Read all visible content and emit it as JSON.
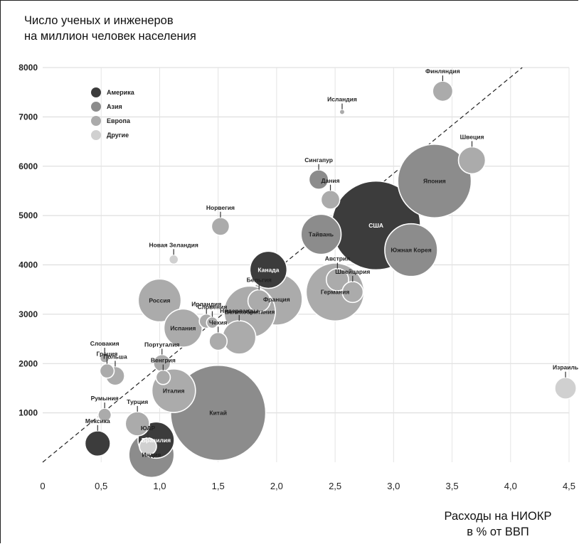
{
  "chart_data": {
    "type": "scatter",
    "bubble": true,
    "ylabel_lines": [
      "Число ученых и инженеров",
      "на миллион человек населения"
    ],
    "xlabel_lines": [
      "Расходы на НИОКР",
      "в % от ВВП"
    ],
    "xlim": [
      0,
      4.5
    ],
    "ylim": [
      0,
      8000
    ],
    "x_ticks": [
      {
        "v": 0,
        "t": "0"
      },
      {
        "v": 0.5,
        "t": "0,5"
      },
      {
        "v": 1.0,
        "t": "1,0"
      },
      {
        "v": 1.5,
        "t": "1,5"
      },
      {
        "v": 2.0,
        "t": "2,0"
      },
      {
        "v": 2.5,
        "t": "2,5"
      },
      {
        "v": 3.0,
        "t": "3,0"
      },
      {
        "v": 3.5,
        "t": "3,5"
      },
      {
        "v": 4.0,
        "t": "4,0"
      },
      {
        "v": 4.5,
        "t": "4,5"
      }
    ],
    "y_ticks": [
      1000,
      2000,
      3000,
      4000,
      5000,
      6000,
      7000,
      8000
    ],
    "grid": true,
    "legend_position": "top-left",
    "series": [
      {
        "name": "Америка",
        "color": "#3c3c3c"
      },
      {
        "name": "Азия",
        "color": "#8c8c8c"
      },
      {
        "name": "Европа",
        "color": "#ababab"
      },
      {
        "name": "Другие",
        "color": "#d0d0d0"
      }
    ],
    "trend_line": {
      "from": [
        0,
        0
      ],
      "to": [
        4.1,
        8000
      ]
    },
    "points": [
      {
        "label": "США",
        "x": 2.85,
        "y": 4800,
        "size": 2.7,
        "series": "Америка"
      },
      {
        "label": "Китай",
        "x": 1.5,
        "y": 1000,
        "size": 3.1,
        "series": "Азия"
      },
      {
        "label": "Япония",
        "x": 3.35,
        "y": 5700,
        "size": 1.85,
        "series": "Азия"
      },
      {
        "label": "Германия",
        "x": 2.5,
        "y": 3450,
        "size": 1.15,
        "series": "Европа"
      },
      {
        "label": "Франция",
        "x": 2.0,
        "y": 3300,
        "size": 0.9,
        "series": "Европа"
      },
      {
        "label": "Великобритания",
        "x": 1.77,
        "y": 3050,
        "size": 0.9,
        "series": "Европа"
      },
      {
        "label": "Южная Корея",
        "x": 3.15,
        "y": 4300,
        "size": 0.95,
        "series": "Азия"
      },
      {
        "label": "Италия",
        "x": 1.12,
        "y": 1450,
        "size": 0.65,
        "series": "Европа"
      },
      {
        "label": "Индия",
        "x": 0.93,
        "y": 150,
        "size": 0.7,
        "series": "Азия"
      },
      {
        "label": "Россия",
        "x": 1.0,
        "y": 3280,
        "size": 0.63,
        "series": "Европа"
      },
      {
        "label": "Канада",
        "x": 1.93,
        "y": 3900,
        "size": 0.47,
        "series": "Америка"
      },
      {
        "label": "Испания",
        "x": 1.2,
        "y": 2720,
        "size": 0.5,
        "series": "Европа"
      },
      {
        "label": "Тайвань",
        "x": 2.38,
        "y": 4620,
        "size": 0.55,
        "series": "Азия"
      },
      {
        "label": "Бразилия",
        "x": 0.97,
        "y": 450,
        "size": 0.45,
        "series": "Америка"
      },
      {
        "label": "Нидерланды",
        "x": 1.68,
        "y": 2530,
        "size": 0.38,
        "series": "Европа"
      },
      {
        "label": "Швеция",
        "x": 3.67,
        "y": 6120,
        "size": 0.25,
        "series": "Европа"
      },
      {
        "label": "Финляндия",
        "x": 3.42,
        "y": 7520,
        "size": 0.14,
        "series": "Европа"
      },
      {
        "label": "Швейцария",
        "x": 2.65,
        "y": 3450,
        "size": 0.15,
        "series": "Европа"
      },
      {
        "label": "Австрия",
        "x": 2.52,
        "y": 3700,
        "size": 0.17,
        "series": "Европа"
      },
      {
        "label": "Бельгия",
        "x": 1.85,
        "y": 3270,
        "size": 0.17,
        "series": "Европа"
      },
      {
        "label": "Израиль",
        "x": 4.47,
        "y": 1500,
        "size": 0.16,
        "series": "Другие"
      },
      {
        "label": "Мексика",
        "x": 0.47,
        "y": 380,
        "size": 0.22,
        "series": "Америка"
      },
      {
        "label": "Сингапур",
        "x": 2.36,
        "y": 5730,
        "size": 0.13,
        "series": "Азия"
      },
      {
        "label": "Дания",
        "x": 2.46,
        "y": 5320,
        "size": 0.12,
        "series": "Европа"
      },
      {
        "label": "Норвегия",
        "x": 1.52,
        "y": 4780,
        "size": 0.11,
        "series": "Европа"
      },
      {
        "label": "Турция",
        "x": 0.81,
        "y": 780,
        "size": 0.2,
        "series": "Европа"
      },
      {
        "label": "ЮАР",
        "x": 0.9,
        "y": 320,
        "size": 0.1,
        "series": "Другие"
      },
      {
        "label": "Чехия",
        "x": 1.5,
        "y": 2450,
        "size": 0.11,
        "series": "Европа"
      },
      {
        "label": "Португалия",
        "x": 1.02,
        "y": 2010,
        "size": 0.1,
        "series": "Европа"
      },
      {
        "label": "Польша",
        "x": 0.62,
        "y": 1750,
        "size": 0.12,
        "series": "Европа"
      },
      {
        "label": "Ирландия",
        "x": 1.4,
        "y": 2860,
        "size": 0.07,
        "series": "Европа"
      },
      {
        "label": "Словения",
        "x": 1.45,
        "y": 2830,
        "size": 0.045,
        "series": "Европа"
      },
      {
        "label": "Венгрия",
        "x": 1.03,
        "y": 1720,
        "size": 0.07,
        "series": "Европа"
      },
      {
        "label": "Греция",
        "x": 0.55,
        "y": 1850,
        "size": 0.07,
        "series": "Европа"
      },
      {
        "label": "Румыния",
        "x": 0.53,
        "y": 960,
        "size": 0.06,
        "series": "Европа"
      },
      {
        "label": "Словакия",
        "x": 0.53,
        "y": 2110,
        "size": 0.03,
        "series": "Европа"
      },
      {
        "label": "Новая Зеландия",
        "x": 1.12,
        "y": 4110,
        "size": 0.03,
        "series": "Другие"
      },
      {
        "label": "Исландия",
        "x": 2.56,
        "y": 7100,
        "size": 0.01,
        "series": "Европа"
      }
    ]
  }
}
